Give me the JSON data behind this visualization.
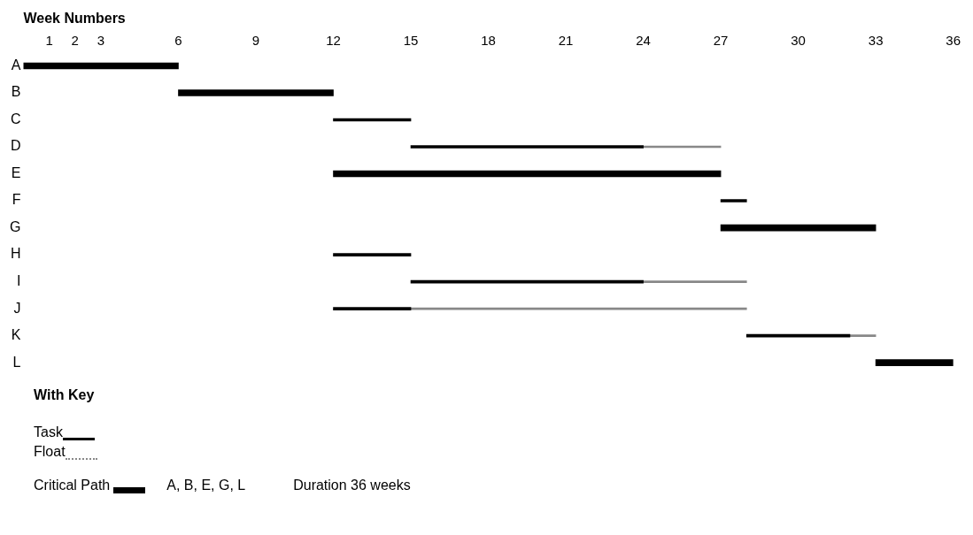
{
  "chart_data": {
    "type": "bar",
    "orientation": "horizontal",
    "xlabel": "Week Numbers",
    "legend_title": "With Key",
    "legend": "bottom left",
    "categories": [
      "A",
      "B",
      "C",
      "D",
      "E",
      "F",
      "G",
      "H",
      "I",
      "J",
      "K",
      "L"
    ],
    "xlim": [
      0,
      36
    ],
    "xticks": [
      1,
      2,
      3,
      6,
      9,
      12,
      15,
      18,
      21,
      24,
      27,
      30,
      33,
      36
    ],
    "series": [
      {
        "name": "Critical Path",
        "color": "#000000",
        "line_style": "solid",
        "base": [
          0,
          6,
          null,
          null,
          12,
          null,
          27,
          null,
          null,
          null,
          null,
          33
        ],
        "values": [
          6,
          6,
          null,
          null,
          15,
          null,
          6,
          null,
          null,
          null,
          null,
          3
        ]
      },
      {
        "name": "Task",
        "color": "#000000",
        "line_style": "solid",
        "base": [
          null,
          null,
          12,
          15,
          null,
          27,
          null,
          12,
          15,
          12,
          28,
          null
        ],
        "values": [
          null,
          null,
          3,
          9,
          null,
          1,
          null,
          3,
          9,
          3,
          4,
          null
        ]
      },
      {
        "name": "Float",
        "color": "#888888",
        "line_style": "dotted",
        "base": [
          null,
          null,
          null,
          24,
          null,
          null,
          null,
          null,
          24,
          15,
          32,
          null
        ],
        "values": [
          null,
          null,
          null,
          3,
          null,
          null,
          null,
          null,
          4,
          13,
          1,
          null
        ]
      }
    ],
    "annotations": [
      "A, B, E, G, L",
      "Duration 36 weeks"
    ]
  }
}
